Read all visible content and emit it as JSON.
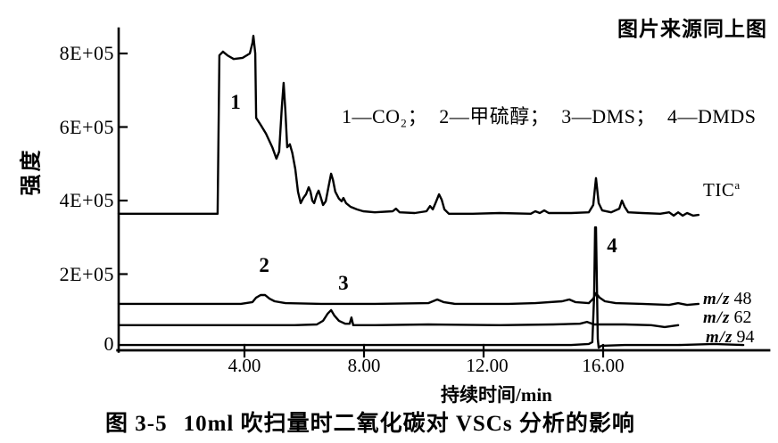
{
  "figure": {
    "source_note": "图片来源同上图",
    "caption_prefix": "图 3-5",
    "caption_text": "10ml 吹扫量时二氧化碳对 VSCs 分析的影响"
  },
  "legend": {
    "items": [
      "1—CO₂；",
      "2—甲硫醇；",
      "3—DMS；",
      "4—DMDS"
    ]
  },
  "trace_labels": {
    "tic_text": "TIC",
    "tic_sup": "a",
    "mz_prefix": "m/z",
    "mz48": "48",
    "mz62": "62",
    "mz94": "94"
  },
  "axes": {
    "x": {
      "title": "持续时间/min",
      "ticks": [
        {
          "value": 4,
          "label": "4.00"
        },
        {
          "value": 8,
          "label": "8.00"
        },
        {
          "value": 12,
          "label": "12.00"
        },
        {
          "value": 16,
          "label": "16.00"
        }
      ]
    },
    "y": {
      "title": "强度",
      "ticks": [
        {
          "value": 8,
          "label": "8E+05"
        },
        {
          "value": 6,
          "label": "6E+05"
        },
        {
          "value": 4,
          "label": "4E+05"
        },
        {
          "value": 2,
          "label": "2E+05"
        },
        {
          "value": 0,
          "label": "0"
        }
      ]
    }
  },
  "chart_data": {
    "type": "line",
    "title": "图 3-5 10ml 吹扫量时二氧化碳对 VSCs 分析的影响",
    "xlabel": "持续时间/min",
    "ylabel": "强度",
    "x_unit": "min",
    "y_unit": "intensity counts ×1E+05",
    "xlim": [
      -0.2,
      21.6
    ],
    "ylim": [
      0,
      8.7
    ],
    "grid": false,
    "line_color": "#000000",
    "series": [
      {
        "name": "TIC",
        "peak_assignments": {
          "1": "CO2 ~4.3 min",
          "peak_10.6": "~10.6 min",
          "peak_15.8": "~15.8 min"
        },
        "points": [
          [
            -0.21,
            3.64
          ],
          [
            3.1,
            3.64
          ],
          [
            3.16,
            7.95
          ],
          [
            3.28,
            8.05
          ],
          [
            3.43,
            7.95
          ],
          [
            3.64,
            7.85
          ],
          [
            3.94,
            7.88
          ],
          [
            4.18,
            8.0
          ],
          [
            4.27,
            8.29
          ],
          [
            4.3,
            8.48
          ],
          [
            4.36,
            8.0
          ],
          [
            4.39,
            6.25
          ],
          [
            4.54,
            6.06
          ],
          [
            4.72,
            5.82
          ],
          [
            4.93,
            5.45
          ],
          [
            5.07,
            5.14
          ],
          [
            5.16,
            5.33
          ],
          [
            5.25,
            6.55
          ],
          [
            5.31,
            7.2
          ],
          [
            5.37,
            6.42
          ],
          [
            5.43,
            5.45
          ],
          [
            5.52,
            5.53
          ],
          [
            5.6,
            5.3
          ],
          [
            5.7,
            4.85
          ],
          [
            5.79,
            4.24
          ],
          [
            5.88,
            3.93
          ],
          [
            5.97,
            4.07
          ],
          [
            6.06,
            4.17
          ],
          [
            6.15,
            4.36
          ],
          [
            6.21,
            4.24
          ],
          [
            6.27,
            4.0
          ],
          [
            6.33,
            3.93
          ],
          [
            6.42,
            4.17
          ],
          [
            6.48,
            4.27
          ],
          [
            6.54,
            4.12
          ],
          [
            6.63,
            3.88
          ],
          [
            6.72,
            3.98
          ],
          [
            6.81,
            4.36
          ],
          [
            6.9,
            4.73
          ],
          [
            6.96,
            4.56
          ],
          [
            7.04,
            4.24
          ],
          [
            7.16,
            4.05
          ],
          [
            7.25,
            3.98
          ],
          [
            7.31,
            4.07
          ],
          [
            7.4,
            3.93
          ],
          [
            7.55,
            3.83
          ],
          [
            7.76,
            3.76
          ],
          [
            7.97,
            3.71
          ],
          [
            8.36,
            3.68
          ],
          [
            8.96,
            3.71
          ],
          [
            9.07,
            3.78
          ],
          [
            9.19,
            3.68
          ],
          [
            9.7,
            3.66
          ],
          [
            10.09,
            3.71
          ],
          [
            10.21,
            3.85
          ],
          [
            10.3,
            3.76
          ],
          [
            10.39,
            3.93
          ],
          [
            10.51,
            4.17
          ],
          [
            10.6,
            4.02
          ],
          [
            10.69,
            3.76
          ],
          [
            10.84,
            3.64
          ],
          [
            11.64,
            3.64
          ],
          [
            12.54,
            3.66
          ],
          [
            13.58,
            3.64
          ],
          [
            13.73,
            3.71
          ],
          [
            13.88,
            3.66
          ],
          [
            14.03,
            3.73
          ],
          [
            14.18,
            3.66
          ],
          [
            14.93,
            3.66
          ],
          [
            15.52,
            3.68
          ],
          [
            15.67,
            3.88
          ],
          [
            15.76,
            4.61
          ],
          [
            15.85,
            3.93
          ],
          [
            15.97,
            3.73
          ],
          [
            16.27,
            3.68
          ],
          [
            16.54,
            3.78
          ],
          [
            16.63,
            4.0
          ],
          [
            16.72,
            3.83
          ],
          [
            16.84,
            3.68
          ],
          [
            17.31,
            3.66
          ],
          [
            17.91,
            3.64
          ],
          [
            18.21,
            3.68
          ],
          [
            18.36,
            3.59
          ],
          [
            18.51,
            3.68
          ],
          [
            18.66,
            3.59
          ],
          [
            18.81,
            3.66
          ],
          [
            19.01,
            3.59
          ],
          [
            19.19,
            3.61
          ]
        ]
      },
      {
        "name": "m/z 48",
        "peak_assignments": {
          "2": "甲硫醇 ~4.7 min"
        },
        "points": [
          [
            -0.21,
            1.19
          ],
          [
            3.88,
            1.19
          ],
          [
            4.27,
            1.24
          ],
          [
            4.39,
            1.36
          ],
          [
            4.54,
            1.43
          ],
          [
            4.69,
            1.43
          ],
          [
            4.84,
            1.33
          ],
          [
            5.01,
            1.26
          ],
          [
            5.37,
            1.21
          ],
          [
            6.57,
            1.19
          ],
          [
            8.36,
            1.19
          ],
          [
            10.15,
            1.21
          ],
          [
            10.45,
            1.31
          ],
          [
            10.66,
            1.24
          ],
          [
            11.04,
            1.19
          ],
          [
            12.84,
            1.19
          ],
          [
            13.73,
            1.21
          ],
          [
            14.63,
            1.26
          ],
          [
            14.87,
            1.31
          ],
          [
            15.07,
            1.24
          ],
          [
            15.52,
            1.21
          ],
          [
            15.67,
            1.33
          ],
          [
            15.76,
            1.48
          ],
          [
            15.88,
            1.36
          ],
          [
            16.06,
            1.26
          ],
          [
            16.42,
            1.21
          ],
          [
            17.31,
            1.19
          ],
          [
            18.21,
            1.16
          ],
          [
            18.51,
            1.21
          ],
          [
            18.81,
            1.16
          ],
          [
            19.19,
            1.19
          ]
        ]
      },
      {
        "name": "m/z 62",
        "peak_assignments": {
          "3": "DMS ~6.9 min"
        },
        "points": [
          [
            -0.21,
            0.61
          ],
          [
            5.67,
            0.61
          ],
          [
            6.42,
            0.63
          ],
          [
            6.63,
            0.73
          ],
          [
            6.78,
            0.92
          ],
          [
            6.9,
            1.02
          ],
          [
            7.01,
            0.87
          ],
          [
            7.16,
            0.73
          ],
          [
            7.37,
            0.65
          ],
          [
            7.52,
            0.65
          ],
          [
            7.58,
            0.82
          ],
          [
            7.64,
            0.61
          ],
          [
            8.36,
            0.61
          ],
          [
            10.15,
            0.63
          ],
          [
            12.54,
            0.61
          ],
          [
            14.33,
            0.63
          ],
          [
            15.22,
            0.65
          ],
          [
            15.46,
            0.7
          ],
          [
            15.7,
            0.63
          ],
          [
            16.72,
            0.63
          ],
          [
            17.61,
            0.61
          ],
          [
            18.06,
            0.56
          ],
          [
            18.51,
            0.61
          ]
        ]
      },
      {
        "name": "m/z 94",
        "peak_assignments": {
          "4": "DMDS ~15.8 min"
        },
        "points": [
          [
            -0.21,
            0.07
          ],
          [
            10.75,
            0.07
          ],
          [
            14.93,
            0.07
          ],
          [
            15.52,
            0.1
          ],
          [
            15.64,
            0.15
          ],
          [
            15.7,
            1.4
          ],
          [
            15.73,
            3.27
          ],
          [
            15.76,
            3.27
          ],
          [
            15.82,
            0.24
          ],
          [
            15.85,
            0.0
          ],
          [
            15.94,
            0.05
          ],
          [
            16.72,
            0.07
          ],
          [
            18.51,
            0.07
          ],
          [
            19.7,
            0.1
          ],
          [
            20.69,
            0.07
          ]
        ]
      }
    ],
    "annotations": [
      {
        "label": "1",
        "t": 3.7,
        "v": 6.5
      },
      {
        "label": "2",
        "t": 4.66,
        "v": 2.06
      },
      {
        "label": "3",
        "t": 7.31,
        "v": 1.58
      },
      {
        "label": "4",
        "t": 16.3,
        "v": 2.6
      }
    ]
  }
}
